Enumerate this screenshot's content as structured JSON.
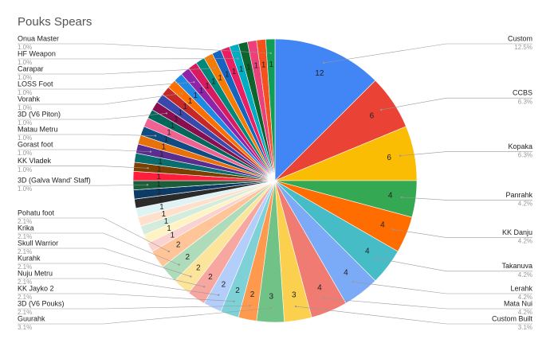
{
  "chart_data": {
    "type": "pie",
    "title": "Pouks Spears",
    "categories": [
      "Custom",
      "CCBS",
      "Kopaka",
      "Panrahk",
      "KK Danju",
      "Takanuva",
      "Lerahk",
      "Mata Nui",
      "Custom Built",
      "Guurahk",
      "3D (V6 Pouks)",
      "KK Jayko 2",
      "Nuju Metru",
      "Kurahk",
      "Skull Warrior",
      "Krika",
      "Pohatu foot",
      null,
      null,
      null,
      null,
      null,
      null,
      null,
      "3D (Galva Wand' Staff)",
      null,
      "KK Vladek",
      null,
      "Gorast foot",
      null,
      "Matau Metru",
      null,
      null,
      "3D (V6 Piton)",
      null,
      null,
      "Vorahk",
      null,
      "LOSS Foot",
      null,
      null,
      "Carapar",
      null,
      null,
      "HF Weapon",
      null,
      null,
      null,
      "Onua Master"
    ],
    "values": [
      12,
      6,
      6,
      4,
      4,
      4,
      4,
      4,
      3,
      3,
      2,
      2,
      2,
      2,
      2,
      2,
      2,
      1,
      1,
      1,
      1,
      1,
      1,
      1,
      1,
      1,
      1,
      1,
      1,
      1,
      1,
      1,
      1,
      1,
      1,
      1,
      1,
      1,
      1,
      1,
      1,
      1,
      1,
      1,
      1,
      1,
      1,
      1,
      1
    ],
    "value_labels": [
      "12.5%",
      "6.3%",
      "6.3%",
      "4.2%",
      "4.2%",
      "4.2%",
      "4.2%",
      "4.2%",
      "3.1%",
      "3.1%",
      "2.1%",
      "2.1%",
      "2.1%",
      "2.1%",
      "2.1%",
      "2.1%",
      "2.1%",
      null,
      null,
      null,
      null,
      null,
      null,
      null,
      "1.0%",
      null,
      "1.0%",
      null,
      "1.0%",
      null,
      "1.0%",
      null,
      null,
      "1.0%",
      null,
      null,
      "1.0%",
      null,
      "1.0%",
      null,
      null,
      "1.0%",
      null,
      null,
      "1.0%",
      null,
      null,
      null,
      "1.0%"
    ],
    "colors": [
      "#4285f4",
      "#ea4335",
      "#fbbc04",
      "#34a853",
      "#ff6d01",
      "#46bdc6",
      "#7baaf7",
      "#f07b72",
      "#fcd04f",
      "#71c287",
      "#ff994d",
      "#7ed1d7",
      "#b3cefb",
      "#f7a7a0",
      "#fde49b",
      "#aedcba",
      "#ffc599",
      "#fad2cf",
      "#fff3c4",
      "#d4ecdb",
      "#ffe0cc",
      "#dff2f4",
      "#2b2b2b",
      "#0d3b66",
      "#1a5e3a",
      "#ff1f3d",
      "#7b3f00",
      "#0b6e6e",
      "#5c2d91",
      "#e8710a",
      "#0f4c81",
      "#f06292",
      "#00695c",
      "#880e4f",
      "#3949ab",
      "#c62828",
      "#ff6f00",
      "#1e88e5",
      "#8e24aa",
      "#d81b60",
      "#00897b",
      "#f57c00",
      "#1565c0",
      "#e91e63",
      "#00acc1",
      "#0d652d",
      "#ec407a",
      "#f4511e",
      "#0f9d58"
    ]
  }
}
